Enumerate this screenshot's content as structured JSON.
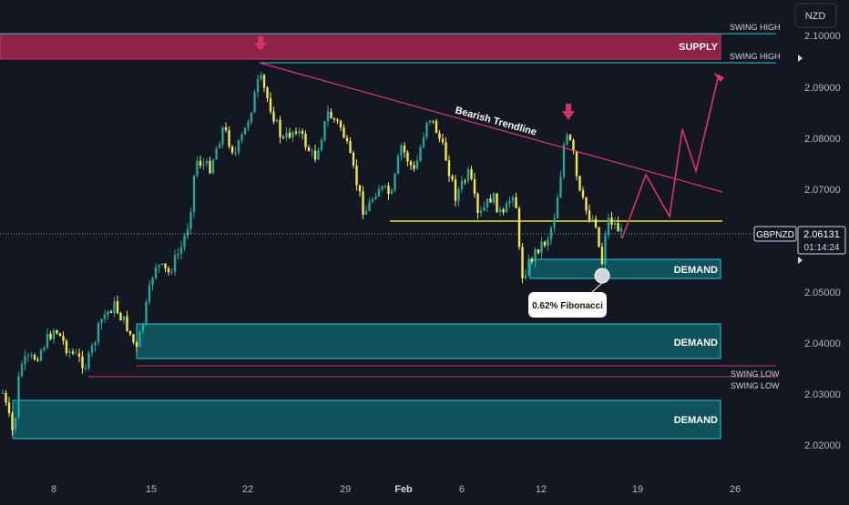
{
  "colors": {
    "background": "#131722",
    "bull": "#26a69a",
    "bear": "#f6e84c",
    "supply": "#a3234f",
    "demand": "#0f5f66",
    "demand_border": "#2ec4d6",
    "trend": "#e0356a",
    "level": "#f1e52b",
    "arrow": "#d13665",
    "axis_text": "#b2b5be"
  },
  "currency": "NZD",
  "price_axis": {
    "ticks": [
      "2.10000",
      "2.09000",
      "2.08000",
      "2.07000",
      "2.06131",
      "2.05000",
      "2.04000",
      "2.03000",
      "2.02000"
    ]
  },
  "time_axis": {
    "ticks": [
      "8",
      "15",
      "22",
      "29",
      "Feb",
      "6",
      "12",
      "19",
      "26"
    ]
  },
  "symbol_label": "GBPNZD",
  "last_price": "2.06131",
  "countdown": "01:14:24",
  "zones": {
    "supply": "SUPPLY",
    "demand": "DEMAND"
  },
  "swings": {
    "high": "SWING HIGH",
    "low": "SWING LOW"
  },
  "annotations": {
    "trendline": "Bearish Trendline",
    "fib": "0.62% Fibonacci"
  },
  "chart_data": {
    "type": "candlestick",
    "symbol": "GBPNZD",
    "ylim": [
      2.0175,
      2.1035
    ],
    "x_ticks": [
      "8",
      "15",
      "22",
      "29",
      "Feb",
      "6",
      "12",
      "19",
      "26"
    ],
    "last_close": 2.06131,
    "levels": {
      "supply_zone": [
        2.095,
        2.0978
      ],
      "demand_zone_1": [
        2.0529,
        2.055
      ],
      "demand_zone_2": [
        2.037,
        2.0438
      ],
      "demand_zone_3": [
        2.0215,
        2.0287
      ],
      "swing_high_1": 2.0978,
      "swing_high_2": 2.095,
      "swing_low_1": 2.0349,
      "swing_low_2": 2.0335,
      "horizontal_level": 2.0647,
      "fibonacci_point": 2.0535
    },
    "bearish_trendline": {
      "from_price": 2.095,
      "to_price": 2.0697
    },
    "projection": [
      2.0619,
      2.0728,
      2.065,
      2.0843,
      2.0763,
      2.0924
    ]
  }
}
